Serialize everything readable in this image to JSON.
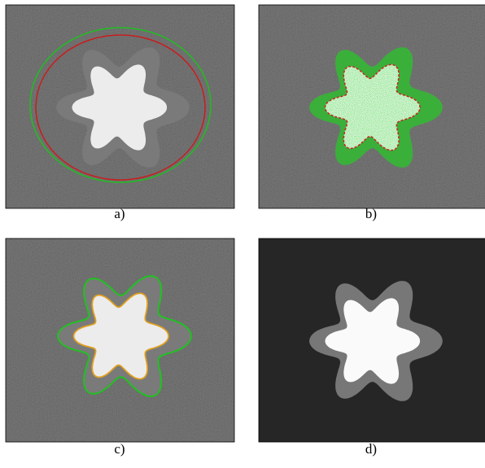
{
  "captions": [
    "a)",
    "b)",
    "c)",
    "d)"
  ]
}
